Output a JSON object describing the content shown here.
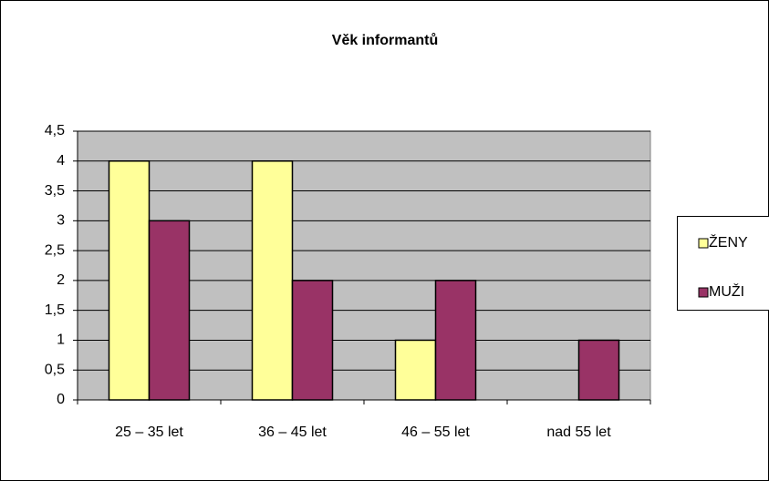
{
  "chart_data": {
    "type": "bar",
    "title": "Věk informantů",
    "categories": [
      "25 – 35 let",
      "36 – 45 let",
      "46 – 55 let",
      "nad 55 let"
    ],
    "series": [
      {
        "name": "ŽENY",
        "color": "#ffff99",
        "values": [
          4,
          4,
          1,
          0
        ]
      },
      {
        "name": "MUŽI",
        "color": "#993366",
        "values": [
          3,
          2,
          2,
          1
        ]
      }
    ],
    "ylim": [
      0,
      4.5
    ],
    "yticks": [
      0,
      {
        "value": 0.5,
        "label": "0,5"
      },
      1,
      {
        "value": 1.5,
        "label": "1,5"
      },
      2,
      {
        "value": 2.5,
        "label": "2,5"
      },
      3,
      {
        "value": 3.5,
        "label": "3,5"
      },
      4,
      {
        "value": 4.5,
        "label": "4,5"
      }
    ],
    "grid": true,
    "legend": "right"
  }
}
